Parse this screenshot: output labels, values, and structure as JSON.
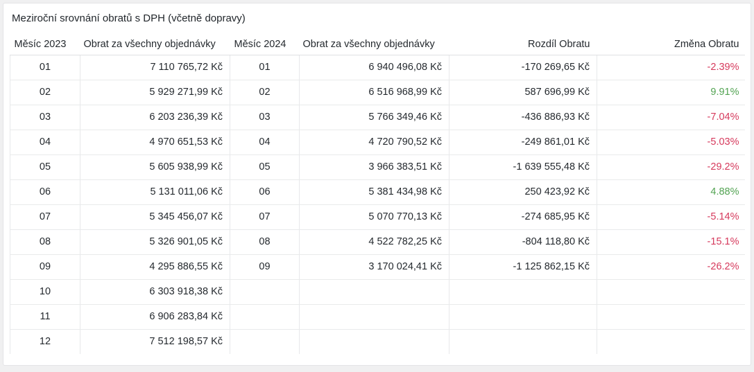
{
  "title": "Meziroční srovnání obratů s DPH (včetně dopravy)",
  "colors": {
    "negative": "#d6395c",
    "positive": "#52a352",
    "text": "#24292e",
    "card_background": "#ffffff",
    "page_background": "#f0f0f1",
    "grid_line": "#e7e8ea"
  },
  "table": {
    "columns": [
      {
        "key": "month2023",
        "label": "Měsíc 2023"
      },
      {
        "key": "turnover2023",
        "label": "Obrat za všechny objednávky"
      },
      {
        "key": "month2024",
        "label": "Měsíc 2024"
      },
      {
        "key": "turnover2024",
        "label": "Obrat za všechny objednávky"
      },
      {
        "key": "difference",
        "label": "Rozdíl Obratu"
      },
      {
        "key": "change",
        "label": "Změna Obratu"
      }
    ],
    "rows": [
      {
        "month2023": "01",
        "turnover2023": "7 110 765,72 Kč",
        "month2024": "01",
        "turnover2024": "6 940 496,08 Kč",
        "difference": "-170 269,65 Kč",
        "change": "-2.39%",
        "trend": "negative"
      },
      {
        "month2023": "02",
        "turnover2023": "5 929 271,99 Kč",
        "month2024": "02",
        "turnover2024": "6 516 968,99 Kč",
        "difference": "587 696,99 Kč",
        "change": "9.91%",
        "trend": "positive"
      },
      {
        "month2023": "03",
        "turnover2023": "6 203 236,39 Kč",
        "month2024": "03",
        "turnover2024": "5 766 349,46 Kč",
        "difference": "-436 886,93 Kč",
        "change": "-7.04%",
        "trend": "negative"
      },
      {
        "month2023": "04",
        "turnover2023": "4 970 651,53 Kč",
        "month2024": "04",
        "turnover2024": "4 720 790,52 Kč",
        "difference": "-249 861,01 Kč",
        "change": "-5.03%",
        "trend": "negative"
      },
      {
        "month2023": "05",
        "turnover2023": "5 605 938,99 Kč",
        "month2024": "05",
        "turnover2024": "3 966 383,51 Kč",
        "difference": "-1 639 555,48 Kč",
        "change": "-29.2%",
        "trend": "negative"
      },
      {
        "month2023": "06",
        "turnover2023": "5 131 011,06 Kč",
        "month2024": "06",
        "turnover2024": "5 381 434,98 Kč",
        "difference": "250 423,92 Kč",
        "change": "4.88%",
        "trend": "positive"
      },
      {
        "month2023": "07",
        "turnover2023": "5 345 456,07 Kč",
        "month2024": "07",
        "turnover2024": "5 070 770,13 Kč",
        "difference": "-274 685,95 Kč",
        "change": "-5.14%",
        "trend": "negative"
      },
      {
        "month2023": "08",
        "turnover2023": "5 326 901,05 Kč",
        "month2024": "08",
        "turnover2024": "4 522 782,25 Kč",
        "difference": "-804 118,80 Kč",
        "change": "-15.1%",
        "trend": "negative"
      },
      {
        "month2023": "09",
        "turnover2023": "4 295 886,55 Kč",
        "month2024": "09",
        "turnover2024": "3 170 024,41 Kč",
        "difference": "-1 125 862,15 Kč",
        "change": "-26.2%",
        "trend": "negative"
      },
      {
        "month2023": "10",
        "turnover2023": "6 303 918,38 Kč",
        "month2024": "",
        "turnover2024": "",
        "difference": "",
        "change": "",
        "trend": ""
      },
      {
        "month2023": "11",
        "turnover2023": "6 906 283,84 Kč",
        "month2024": "",
        "turnover2024": "",
        "difference": "",
        "change": "",
        "trend": ""
      },
      {
        "month2023": "12",
        "turnover2023": "7 512 198,57 Kč",
        "month2024": "",
        "turnover2024": "",
        "difference": "",
        "change": "",
        "trend": ""
      }
    ]
  }
}
